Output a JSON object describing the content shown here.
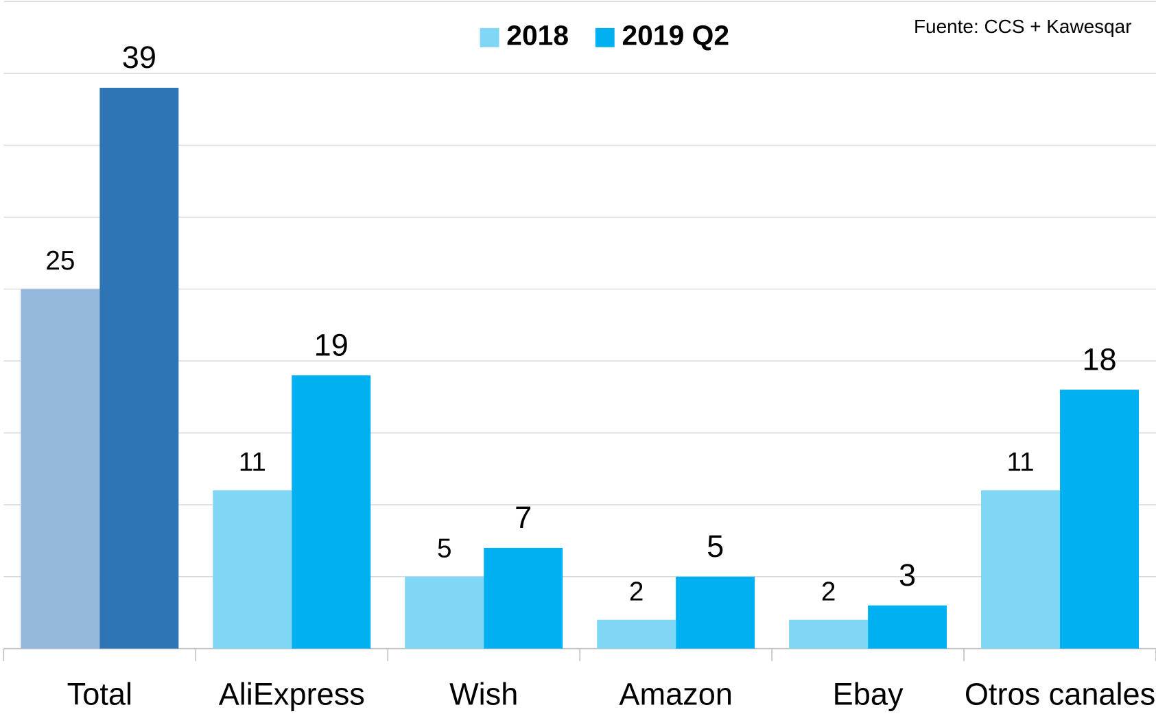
{
  "chart_data": {
    "type": "bar",
    "source": "Fuente: CCS + Kawesqar",
    "categories": [
      "Total",
      "AliExpress",
      "Wish",
      "Amazon",
      "Ebay",
      "Otros canales"
    ],
    "series": [
      {
        "name": "2018",
        "color": "#7fd6f5",
        "colors": [
          "#95b8dc",
          "#7fd6f5",
          "#7fd6f5",
          "#7fd6f5",
          "#7fd6f5",
          "#7fd6f5"
        ],
        "values": [
          25,
          11,
          5,
          2,
          2,
          11
        ]
      },
      {
        "name": "2019 Q2",
        "color": "#00b0f0",
        "colors": [
          "#2e75b6",
          "#00b0f0",
          "#00b0f0",
          "#00b0f0",
          "#00b0f0",
          "#00b0f0"
        ],
        "values": [
          39,
          19,
          7,
          5,
          3,
          18
        ]
      }
    ],
    "ylim": [
      0,
      45
    ],
    "yticks": [
      0,
      5,
      10,
      15,
      20,
      25,
      30,
      35,
      40,
      45
    ],
    "grid": true,
    "legend": "top"
  }
}
